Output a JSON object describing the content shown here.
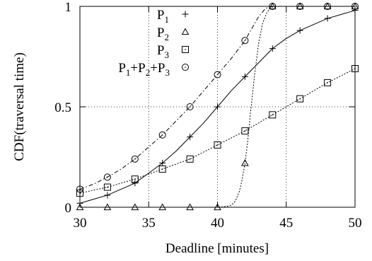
{
  "chart_data": {
    "type": "line",
    "xlabel": "Deadline [minutes]",
    "ylabel": "CDF(traversal time)",
    "xlim": [
      30,
      50
    ],
    "ylim": [
      0,
      1
    ],
    "x_ticks": [
      "30",
      "35",
      "40",
      "45",
      "50"
    ],
    "y_ticks": [
      "0",
      "0.5",
      "1"
    ],
    "grid": "dotted, major ticks",
    "legend_position": "top-left",
    "series": [
      {
        "name": "P1",
        "label_base": "P",
        "label_sub": "1",
        "marker": "plus",
        "line_style": "solid",
        "x": [
          30,
          32,
          34,
          36,
          38,
          40,
          42,
          44,
          46,
          48,
          50
        ],
        "y": [
          0.02,
          0.06,
          0.12,
          0.22,
          0.35,
          0.5,
          0.65,
          0.79,
          0.88,
          0.94,
          0.98
        ],
        "curve": {
          "x": [
            30,
            31,
            32,
            33,
            34,
            35,
            36,
            37,
            38,
            39,
            40,
            41,
            42,
            43,
            44,
            45,
            46,
            47,
            48,
            49,
            50
          ],
          "y": [
            0.02,
            0.04,
            0.06,
            0.09,
            0.12,
            0.17,
            0.22,
            0.28,
            0.35,
            0.42,
            0.5,
            0.58,
            0.65,
            0.72,
            0.79,
            0.84,
            0.88,
            0.91,
            0.94,
            0.96,
            0.98
          ]
        }
      },
      {
        "name": "P2",
        "label_base": "P",
        "label_sub": "2",
        "marker": "triangle",
        "line_style": "dotted",
        "x": [
          30,
          32,
          34,
          36,
          38,
          40,
          42,
          44,
          46,
          48,
          50
        ],
        "y": [
          0,
          0,
          0,
          0,
          0,
          0,
          0.22,
          1,
          1,
          1,
          1
        ],
        "curve": {
          "x": [
            30,
            32,
            34,
            36,
            38,
            40,
            40.6,
            41,
            41.3,
            41.6,
            41.8,
            42,
            42.2,
            42.4,
            42.7,
            43,
            43.3,
            43.6,
            43.9,
            44.2,
            46,
            48,
            50
          ],
          "y": [
            0,
            0,
            0,
            0,
            0,
            0,
            0.003,
            0.01,
            0.03,
            0.08,
            0.14,
            0.22,
            0.33,
            0.47,
            0.66,
            0.82,
            0.92,
            0.97,
            0.995,
            1,
            1,
            1,
            1
          ]
        }
      },
      {
        "name": "P3",
        "label_base": "P",
        "label_sub": "3",
        "marker": "square",
        "line_style": "dotted",
        "x": [
          30,
          32,
          34,
          36,
          38,
          40,
          42,
          44,
          46,
          48,
          50
        ],
        "y": [
          0.07,
          0.1,
          0.14,
          0.19,
          0.24,
          0.31,
          0.38,
          0.46,
          0.54,
          0.62,
          0.69
        ],
        "curve": {
          "x": [
            30,
            31,
            32,
            33,
            34,
            35,
            36,
            37,
            38,
            39,
            40,
            41,
            42,
            43,
            44,
            45,
            46,
            47,
            48,
            49,
            50
          ],
          "y": [
            0.07,
            0.085,
            0.1,
            0.12,
            0.14,
            0.165,
            0.19,
            0.215,
            0.24,
            0.275,
            0.31,
            0.345,
            0.38,
            0.42,
            0.46,
            0.5,
            0.54,
            0.58,
            0.62,
            0.655,
            0.69
          ]
        }
      },
      {
        "name": "P1+P2+P3",
        "label_parts": [
          {
            "base": "P",
            "sub": "1"
          },
          {
            "base": "+P",
            "sub": "2"
          },
          {
            "base": "+P",
            "sub": "3"
          }
        ],
        "marker": "circle",
        "line_style": "dash-dot",
        "x": [
          30,
          32,
          34,
          36,
          38,
          40,
          42,
          44,
          46,
          48,
          50
        ],
        "y": [
          0.09,
          0.15,
          0.24,
          0.36,
          0.5,
          0.66,
          0.83,
          1,
          1,
          1,
          1
        ],
        "curve": {
          "x": [
            30,
            31,
            32,
            33,
            34,
            35,
            36,
            37,
            38,
            39,
            40,
            41,
            42,
            42.5,
            43,
            43.5,
            44,
            46,
            48,
            50
          ],
          "y": [
            0.09,
            0.115,
            0.15,
            0.19,
            0.24,
            0.3,
            0.36,
            0.43,
            0.5,
            0.58,
            0.66,
            0.74,
            0.83,
            0.89,
            0.95,
            0.99,
            1,
            1,
            1,
            1
          ]
        }
      }
    ]
  }
}
